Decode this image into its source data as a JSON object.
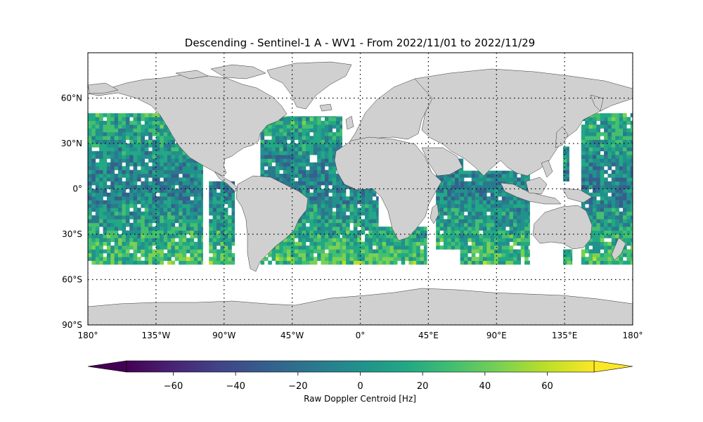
{
  "title": "Descending - Sentinel-1 A - WV1 - From 2022/11/01 to 2022/11/29",
  "map": {
    "lon_ticks": [
      {
        "value": -180,
        "label": "180°"
      },
      {
        "value": -135,
        "label": "135°W"
      },
      {
        "value": -90,
        "label": "90°W"
      },
      {
        "value": -45,
        "label": "45°W"
      },
      {
        "value": 0,
        "label": "0°"
      },
      {
        "value": 45,
        "label": "45°E"
      },
      {
        "value": 90,
        "label": "90°E"
      },
      {
        "value": 135,
        "label": "135°E"
      },
      {
        "value": 180,
        "label": "180°"
      }
    ],
    "lat_ticks": [
      {
        "value": 60,
        "label": "60°N"
      },
      {
        "value": 30,
        "label": "30°N"
      },
      {
        "value": 0,
        "label": "0°"
      },
      {
        "value": -30,
        "label": "30°S"
      },
      {
        "value": -60,
        "label": "60°S"
      },
      {
        "value": -90,
        "label": "90°S"
      }
    ],
    "lon_range": [
      -180,
      180
    ],
    "lat_range": [
      -90,
      90
    ],
    "gridlines": "dotted",
    "land_color": "#d0d0d0",
    "coast_color": "#333333",
    "data_lat_range": [
      -50,
      50
    ],
    "swaths": [
      {
        "lon_min": -180,
        "lon_max": -104,
        "lat_min": -50,
        "lat_max": 50
      },
      {
        "lon_min": -100,
        "lon_max": -83,
        "lat_min": -50,
        "lat_max": 5
      },
      {
        "lon_min": -66,
        "lon_max": -12,
        "lat_min": -50,
        "lat_max": 48
      },
      {
        "lon_min": -12,
        "lon_max": 12,
        "lat_min": -50,
        "lat_max": 5
      },
      {
        "lon_min": 12,
        "lon_max": 44,
        "lat_min": -50,
        "lat_max": -25
      },
      {
        "lon_min": 50,
        "lon_max": 68,
        "lat_min": -40,
        "lat_max": 20
      },
      {
        "lon_min": 66,
        "lon_max": 112,
        "lat_min": -50,
        "lat_max": 12
      },
      {
        "lon_min": 134,
        "lon_max": 140,
        "lat_min": -50,
        "lat_max": -40
      },
      {
        "lon_min": 134,
        "lon_max": 138,
        "lat_min": 5,
        "lat_max": 28
      },
      {
        "lon_min": 146,
        "lon_max": 180,
        "lat_min": -50,
        "lat_max": 50
      }
    ]
  },
  "colorbar": {
    "label": "Raw Doppler Centroid [Hz]",
    "min": -75,
    "max": 75,
    "extend": "both",
    "colormap": "viridis",
    "ticks": [
      {
        "value": -60,
        "label": "−60"
      },
      {
        "value": -40,
        "label": "−40"
      },
      {
        "value": -20,
        "label": "−20"
      },
      {
        "value": 0,
        "label": "0"
      },
      {
        "value": 20,
        "label": "20"
      },
      {
        "value": 40,
        "label": "40"
      },
      {
        "value": 60,
        "label": "60"
      }
    ]
  }
}
